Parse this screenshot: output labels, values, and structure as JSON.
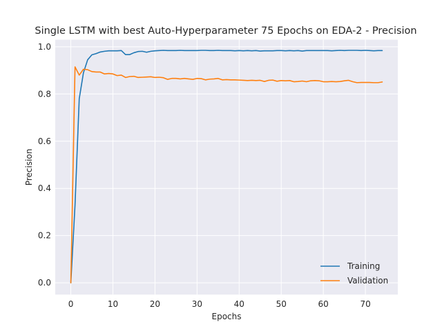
{
  "chart_data": {
    "type": "line",
    "title": "Single LSTM with best Auto-Hyperparameter 75 Epochs on EDA-2 - Precision",
    "xlabel": "Epochs",
    "ylabel": "Precision",
    "xlim": [
      -3.7,
      77.7
    ],
    "ylim": [
      -0.05,
      1.03
    ],
    "xticks": [
      0,
      10,
      20,
      30,
      40,
      50,
      60,
      70
    ],
    "yticks": [
      0.0,
      0.2,
      0.4,
      0.6,
      0.8,
      1.0
    ],
    "xtick_labels": [
      "0",
      "10",
      "20",
      "30",
      "40",
      "50",
      "60",
      "70"
    ],
    "ytick_labels": [
      "0.0",
      "0.2",
      "0.4",
      "0.6",
      "0.8",
      "1.0"
    ],
    "grid": true,
    "legend": "lower-right",
    "series": [
      {
        "name": "Training",
        "color": "#1f77b4",
        "x": [
          0,
          1,
          2,
          3,
          4,
          5,
          6,
          7,
          8,
          9,
          10,
          11,
          12,
          13,
          14,
          15,
          16,
          17,
          18,
          19,
          20,
          21,
          22,
          23,
          24,
          25,
          26,
          27,
          28,
          29,
          30,
          31,
          32,
          33,
          34,
          35,
          36,
          37,
          38,
          39,
          40,
          41,
          42,
          43,
          44,
          45,
          46,
          47,
          48,
          49,
          50,
          51,
          52,
          53,
          54,
          55,
          56,
          57,
          58,
          59,
          60,
          61,
          62,
          63,
          64,
          65,
          66,
          67,
          68,
          69,
          70,
          71,
          72,
          73,
          74
        ],
        "values": [
          0.0,
          0.33,
          0.78,
          0.89,
          0.945,
          0.966,
          0.971,
          0.978,
          0.981,
          0.983,
          0.983,
          0.983,
          0.984,
          0.967,
          0.967,
          0.975,
          0.98,
          0.981,
          0.977,
          0.981,
          0.983,
          0.984,
          0.985,
          0.984,
          0.984,
          0.984,
          0.985,
          0.984,
          0.984,
          0.984,
          0.984,
          0.985,
          0.985,
          0.984,
          0.984,
          0.985,
          0.984,
          0.984,
          0.984,
          0.983,
          0.984,
          0.983,
          0.984,
          0.983,
          0.984,
          0.982,
          0.983,
          0.983,
          0.983,
          0.984,
          0.984,
          0.983,
          0.984,
          0.983,
          0.984,
          0.982,
          0.984,
          0.984,
          0.984,
          0.984,
          0.984,
          0.984,
          0.983,
          0.984,
          0.985,
          0.984,
          0.985,
          0.985,
          0.985,
          0.984,
          0.985,
          0.984,
          0.983,
          0.984,
          0.984
        ]
      },
      {
        "name": "Validation",
        "color": "#ff7f0e",
        "x": [
          0,
          1,
          2,
          3,
          4,
          5,
          6,
          7,
          8,
          9,
          10,
          11,
          12,
          13,
          14,
          15,
          16,
          17,
          18,
          19,
          20,
          21,
          22,
          23,
          24,
          25,
          26,
          27,
          28,
          29,
          30,
          31,
          32,
          33,
          34,
          35,
          36,
          37,
          38,
          39,
          40,
          41,
          42,
          43,
          44,
          45,
          46,
          47,
          48,
          49,
          50,
          51,
          52,
          53,
          54,
          55,
          56,
          57,
          58,
          59,
          60,
          61,
          62,
          63,
          64,
          65,
          66,
          67,
          68,
          69,
          70,
          71,
          72,
          73,
          74
        ],
        "values": [
          0.0,
          0.915,
          0.88,
          0.905,
          0.903,
          0.895,
          0.893,
          0.893,
          0.885,
          0.887,
          0.885,
          0.878,
          0.88,
          0.87,
          0.874,
          0.875,
          0.87,
          0.871,
          0.872,
          0.873,
          0.87,
          0.871,
          0.869,
          0.862,
          0.866,
          0.866,
          0.864,
          0.866,
          0.864,
          0.862,
          0.866,
          0.865,
          0.86,
          0.863,
          0.864,
          0.866,
          0.86,
          0.861,
          0.86,
          0.86,
          0.859,
          0.858,
          0.857,
          0.858,
          0.857,
          0.858,
          0.853,
          0.858,
          0.859,
          0.854,
          0.857,
          0.856,
          0.857,
          0.852,
          0.853,
          0.855,
          0.852,
          0.856,
          0.857,
          0.856,
          0.852,
          0.852,
          0.853,
          0.852,
          0.853,
          0.856,
          0.858,
          0.852,
          0.848,
          0.849,
          0.849,
          0.849,
          0.848,
          0.848,
          0.851
        ]
      }
    ]
  }
}
